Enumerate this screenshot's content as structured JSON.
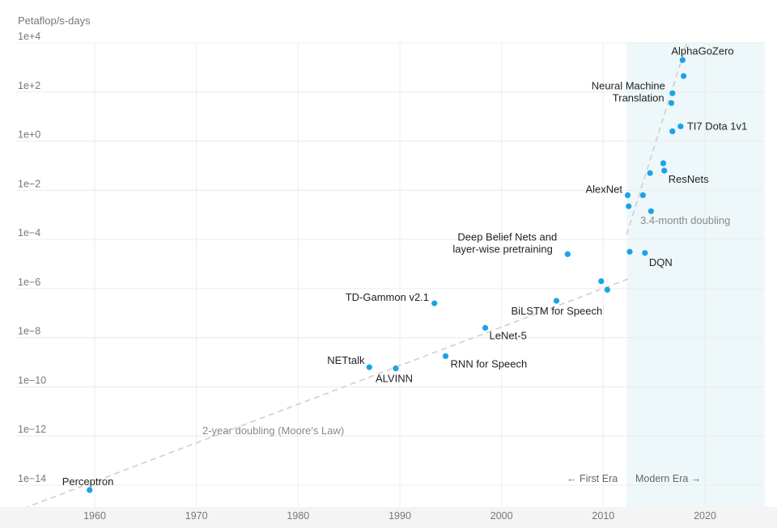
{
  "chart_data": {
    "type": "scatter",
    "title": "",
    "ylabel": "Petaflop/s-days",
    "xlabel": "",
    "y_scale": "log",
    "xlim": [
      1953,
      2026
    ],
    "ylim_log10": [
      -14.9,
      4
    ],
    "x_ticks": [
      1960,
      1970,
      1980,
      1990,
      2000,
      2010,
      2020
    ],
    "x_tick_labels": [
      "1960",
      "1970",
      "1980",
      "1990",
      "2000",
      "2010",
      "2020"
    ],
    "y_ticks_log10": [
      4,
      2,
      0,
      -2,
      -4,
      -6,
      -8,
      -10,
      -12,
      -14
    ],
    "y_tick_labels": [
      "1e+4",
      "1e+2",
      "1e+0",
      "1e−2",
      "1e−4",
      "1e−6",
      "1e−8",
      "1e−10",
      "1e−12",
      "1e−14"
    ],
    "grid": true,
    "point_color": "#1aa3e8",
    "modern_era_start": 2012.3,
    "modern_era_color": "#eef7f9",
    "era_labels": {
      "first": "← First Era",
      "modern": "Modern Era →"
    },
    "points": [
      {
        "x": 1959.5,
        "log10y": -14.2,
        "label": "Perceptron"
      },
      {
        "x": 1987.0,
        "log10y": -9.2,
        "label": "NETtalk"
      },
      {
        "x": 1989.6,
        "log10y": -9.25,
        "label": "ALVINN"
      },
      {
        "x": 1993.4,
        "log10y": -6.6,
        "label": "TD-Gammon v2.1"
      },
      {
        "x": 1994.5,
        "log10y": -8.75,
        "label": "RNN for Speech"
      },
      {
        "x": 1998.4,
        "log10y": -7.6,
        "label": "LeNet-5"
      },
      {
        "x": 2005.4,
        "log10y": -6.5,
        "label": "BiLSTM for Speech"
      },
      {
        "x": 2006.5,
        "log10y": -4.6,
        "label": "Deep Belief Nets and\nlayer-wise pretraining"
      },
      {
        "x": 2009.8,
        "log10y": -5.7,
        "label": ""
      },
      {
        "x": 2010.4,
        "log10y": -6.05,
        "label": ""
      },
      {
        "x": 2012.4,
        "log10y": -2.2,
        "label": "AlexNet"
      },
      {
        "x": 2012.5,
        "log10y": -2.65,
        "label": ""
      },
      {
        "x": 2012.6,
        "log10y": -4.5,
        "label": ""
      },
      {
        "x": 2013.9,
        "log10y": -2.2,
        "label": ""
      },
      {
        "x": 2014.1,
        "log10y": -4.55,
        "label": "DQN"
      },
      {
        "x": 2014.6,
        "log10y": -1.3,
        "label": ""
      },
      {
        "x": 2014.7,
        "log10y": -2.85,
        "label": ""
      },
      {
        "x": 2015.9,
        "log10y": -0.9,
        "label": ""
      },
      {
        "x": 2016.0,
        "log10y": -1.2,
        "label": "ResNets"
      },
      {
        "x": 2016.8,
        "log10y": 0.4,
        "label": ""
      },
      {
        "x": 2016.7,
        "log10y": 1.55,
        "label": ""
      },
      {
        "x": 2016.8,
        "log10y": 1.95,
        "label": "Neural Machine\nTranslation"
      },
      {
        "x": 2017.6,
        "log10y": 0.6,
        "label": "TI7 Dota 1v1"
      },
      {
        "x": 2017.9,
        "log10y": 2.65,
        "label": ""
      },
      {
        "x": 2017.8,
        "log10y": 3.3,
        "label": "AlphaGoZero"
      }
    ],
    "trend_lines": [
      {
        "label": "2-year doubling (Moore's Law)",
        "from": [
          1953,
          -14.95
        ],
        "to": [
          2012.5,
          -5.6
        ]
      },
      {
        "label": "3.4-month doubling",
        "from": [
          2012.3,
          -3.8
        ],
        "to": [
          2018.3,
          4.1
        ]
      }
    ]
  }
}
